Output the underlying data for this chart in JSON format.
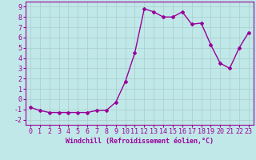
{
  "x": [
    0,
    1,
    2,
    3,
    4,
    5,
    6,
    7,
    8,
    9,
    10,
    11,
    12,
    13,
    14,
    15,
    16,
    17,
    18,
    19,
    20,
    21,
    22,
    23
  ],
  "y": [
    -0.8,
    -1.1,
    -1.3,
    -1.3,
    -1.3,
    -1.3,
    -1.3,
    -1.1,
    -1.1,
    -0.3,
    1.7,
    4.5,
    8.8,
    8.5,
    8.0,
    8.0,
    8.5,
    7.3,
    7.4,
    5.3,
    3.5,
    3.0,
    5.0,
    6.5
  ],
  "line_color": "#990099",
  "marker": "D",
  "marker_size": 2,
  "bg_color": "#c0e8e8",
  "grid_color": "#aacccc",
  "xlabel": "Windchill (Refroidissement éolien,°C)",
  "xlabel_fontsize": 6.0,
  "ylabel_ticks": [
    -2,
    -1,
    0,
    1,
    2,
    3,
    4,
    5,
    6,
    7,
    8,
    9
  ],
  "xtick_labels": [
    "0",
    "1",
    "2",
    "3",
    "4",
    "5",
    "6",
    "7",
    "8",
    "9",
    "10",
    "11",
    "12",
    "13",
    "14",
    "15",
    "16",
    "17",
    "18",
    "19",
    "20",
    "21",
    "22",
    "23"
  ],
  "xlim": [
    -0.5,
    23.5
  ],
  "ylim": [
    -2.5,
    9.5
  ],
  "tick_fontsize": 6.0,
  "line_width": 1.0
}
